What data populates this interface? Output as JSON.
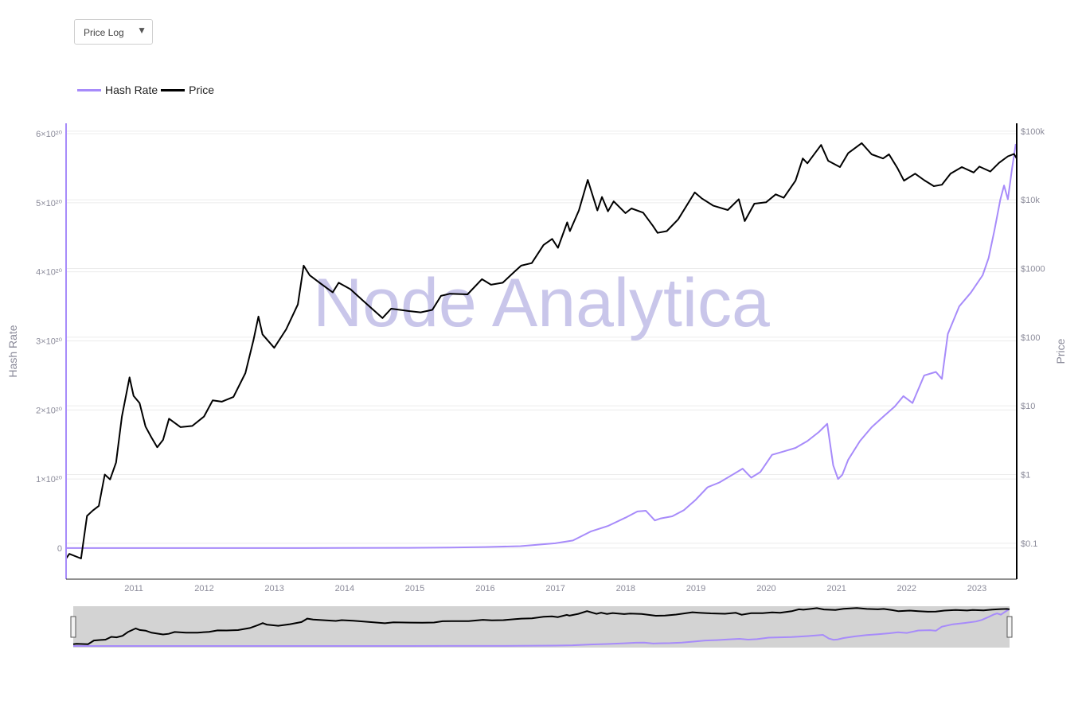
{
  "controls": {
    "scale_select": {
      "value": "Price Log",
      "caret": "▼"
    }
  },
  "watermark": "Node Analytica",
  "colors": {
    "hash_rate": "#a78bfa",
    "price": "#000000",
    "axis_text": "#8a8a99",
    "grid": "#ececec",
    "navigator_bg": "#d3d3d3",
    "watermark": "#c9c6ea"
  },
  "chart_data": {
    "type": "line",
    "x_type": "date",
    "xlim": [
      "2010-07-15",
      "2024-01-25"
    ],
    "x_ticks": [
      "2011",
      "2012",
      "2013",
      "2014",
      "2015",
      "2016",
      "2017",
      "2018",
      "2019",
      "2020",
      "2021",
      "2022",
      "2023"
    ],
    "y_left": {
      "label": "Hash Rate",
      "ylim": [
        -4.5e+19,
        6.15e+20
      ],
      "ticks": [
        {
          "value": 0,
          "label": "0"
        },
        {
          "value": 1e+20,
          "label": "1×10²⁰"
        },
        {
          "value": 2e+20,
          "label": "2×10²⁰"
        },
        {
          "value": 3e+20,
          "label": "3×10²⁰"
        },
        {
          "value": 4e+20,
          "label": "4×10²⁰"
        },
        {
          "value": 5e+20,
          "label": "5×10²⁰"
        },
        {
          "value": 6e+20,
          "label": "6×10²⁰"
        }
      ]
    },
    "y_right": {
      "label": "Price",
      "scale": "log",
      "ylim": [
        0.03,
        130000
      ],
      "ticks": [
        {
          "value": 0.1,
          "label": "$0.1"
        },
        {
          "value": 1,
          "label": "$1"
        },
        {
          "value": 10,
          "label": "$10"
        },
        {
          "value": 100,
          "label": "$100"
        },
        {
          "value": 1000,
          "label": "$1000"
        },
        {
          "value": 10000,
          "label": "$10k"
        },
        {
          "value": 100000,
          "label": "$100k"
        }
      ]
    },
    "legend_position": "top-left",
    "grid": true,
    "series": [
      {
        "name": "Hash Rate",
        "axis": "left",
        "points": [
          [
            "2010-07-15",
            0
          ],
          [
            "2013-01-01",
            20000000000000.0
          ],
          [
            "2014-06-01",
            1e+17
          ],
          [
            "2015-06-01",
            4e+17
          ],
          [
            "2016-01-01",
            8e+17
          ],
          [
            "2016-07-01",
            1.5e+18
          ],
          [
            "2017-01-01",
            2.8e+18
          ],
          [
            "2017-07-01",
            7e+18
          ],
          [
            "2017-10-01",
            1.1e+19
          ],
          [
            "2018-01-01",
            2.4e+19
          ],
          [
            "2018-04-01",
            3.2e+19
          ],
          [
            "2018-07-01",
            4.4e+19
          ],
          [
            "2018-09-01",
            5.3e+19
          ],
          [
            "2018-10-15",
            5.4e+19
          ],
          [
            "2018-12-01",
            4e+19
          ],
          [
            "2019-01-01",
            4.3e+19
          ],
          [
            "2019-03-01",
            4.6e+19
          ],
          [
            "2019-05-01",
            5.5e+19
          ],
          [
            "2019-07-01",
            7e+19
          ],
          [
            "2019-09-01",
            8.8e+19
          ],
          [
            "2019-11-01",
            9.5e+19
          ],
          [
            "2020-01-01",
            1.05e+20
          ],
          [
            "2020-03-01",
            1.15e+20
          ],
          [
            "2020-04-15",
            1.02e+20
          ],
          [
            "2020-06-01",
            1.1e+20
          ],
          [
            "2020-08-01",
            1.35e+20
          ],
          [
            "2020-10-01",
            1.4e+20
          ],
          [
            "2020-12-01",
            1.45e+20
          ],
          [
            "2021-02-01",
            1.55e+20
          ],
          [
            "2021-04-01",
            1.68e+20
          ],
          [
            "2021-05-15",
            1.8e+20
          ],
          [
            "2021-06-15",
            1.2e+20
          ],
          [
            "2021-07-10",
            1e+20
          ],
          [
            "2021-08-01",
            1.06e+20
          ],
          [
            "2021-09-01",
            1.28e+20
          ],
          [
            "2021-11-01",
            1.55e+20
          ],
          [
            "2022-01-01",
            1.75e+20
          ],
          [
            "2022-03-01",
            1.9e+20
          ],
          [
            "2022-05-01",
            2.05e+20
          ],
          [
            "2022-06-15",
            2.2e+20
          ],
          [
            "2022-08-01",
            2.1e+20
          ],
          [
            "2022-10-01",
            2.5e+20
          ],
          [
            "2022-12-01",
            2.55e+20
          ],
          [
            "2023-01-01",
            2.45e+20
          ],
          [
            "2023-02-01",
            3.1e+20
          ],
          [
            "2023-04-01",
            3.5e+20
          ],
          [
            "2023-06-01",
            3.7e+20
          ],
          [
            "2023-08-01",
            3.95e+20
          ],
          [
            "2023-09-01",
            4.2e+20
          ],
          [
            "2023-10-01",
            4.6e+20
          ],
          [
            "2023-11-01",
            5.05e+20
          ],
          [
            "2023-11-20",
            5.25e+20
          ],
          [
            "2023-12-10",
            5.05e+20
          ],
          [
            "2024-01-01",
            5.5e+20
          ],
          [
            "2024-01-20",
            5.85e+20
          ]
        ]
      },
      {
        "name": "Price",
        "axis": "right",
        "points": [
          [
            "2010-07-15",
            0.06
          ],
          [
            "2010-08-01",
            0.07
          ],
          [
            "2010-10-01",
            0.06
          ],
          [
            "2010-11-01",
            0.25
          ],
          [
            "2010-12-01",
            0.3
          ],
          [
            "2011-01-01",
            0.35
          ],
          [
            "2011-02-01",
            1.0
          ],
          [
            "2011-03-01",
            0.85
          ],
          [
            "2011-04-01",
            1.5
          ],
          [
            "2011-05-01",
            7.0
          ],
          [
            "2011-06-10",
            26.0
          ],
          [
            "2011-07-01",
            14.0
          ],
          [
            "2011-08-01",
            11.0
          ],
          [
            "2011-09-01",
            5.0
          ],
          [
            "2011-10-01",
            3.5
          ],
          [
            "2011-11-01",
            2.5
          ],
          [
            "2011-12-01",
            3.2
          ],
          [
            "2012-01-01",
            6.5
          ],
          [
            "2012-03-01",
            4.9
          ],
          [
            "2012-05-01",
            5.1
          ],
          [
            "2012-07-01",
            7.0
          ],
          [
            "2012-08-15",
            12.0
          ],
          [
            "2012-10-01",
            11.5
          ],
          [
            "2012-12-01",
            13.5
          ],
          [
            "2013-02-01",
            30.0
          ],
          [
            "2013-03-15",
            90.0
          ],
          [
            "2013-04-10",
            200.0
          ],
          [
            "2013-05-01",
            110.0
          ],
          [
            "2013-07-01",
            70.0
          ],
          [
            "2013-09-01",
            130.0
          ],
          [
            "2013-11-01",
            300.0
          ],
          [
            "2013-12-01",
            1100.0
          ],
          [
            "2014-01-01",
            800.0
          ],
          [
            "2014-03-01",
            600.0
          ],
          [
            "2014-05-01",
            450.0
          ],
          [
            "2014-06-01",
            620.0
          ],
          [
            "2014-08-01",
            500.0
          ],
          [
            "2014-10-01",
            350.0
          ],
          [
            "2015-01-15",
            190.0
          ],
          [
            "2015-03-01",
            260.0
          ],
          [
            "2015-06-01",
            240.0
          ],
          [
            "2015-08-01",
            230.0
          ],
          [
            "2015-10-01",
            250.0
          ],
          [
            "2015-11-15",
            400.0
          ],
          [
            "2016-01-01",
            430.0
          ],
          [
            "2016-04-01",
            420.0
          ],
          [
            "2016-06-15",
            700.0
          ],
          [
            "2016-08-01",
            580.0
          ],
          [
            "2016-10-01",
            620.0
          ],
          [
            "2016-12-01",
            900.0
          ],
          [
            "2017-01-05",
            1100.0
          ],
          [
            "2017-03-01",
            1200.0
          ],
          [
            "2017-05-01",
            2200.0
          ],
          [
            "2017-06-15",
            2700.0
          ],
          [
            "2017-07-15",
            2000.0
          ],
          [
            "2017-09-01",
            4700.0
          ],
          [
            "2017-09-15",
            3500.0
          ],
          [
            "2017-11-01",
            7000.0
          ],
          [
            "2017-12-17",
            19500.0
          ],
          [
            "2018-02-05",
            7000.0
          ],
          [
            "2018-03-01",
            11000.0
          ],
          [
            "2018-04-01",
            6800.0
          ],
          [
            "2018-05-01",
            9500.0
          ],
          [
            "2018-07-01",
            6400.0
          ],
          [
            "2018-08-01",
            7500.0
          ],
          [
            "2018-10-01",
            6500.0
          ],
          [
            "2018-11-20",
            4200.0
          ],
          [
            "2018-12-15",
            3300.0
          ],
          [
            "2019-02-01",
            3500.0
          ],
          [
            "2019-04-01",
            5200.0
          ],
          [
            "2019-06-26",
            12800.0
          ],
          [
            "2019-08-01",
            10500.0
          ],
          [
            "2019-10-01",
            8200.0
          ],
          [
            "2019-12-15",
            7100.0
          ],
          [
            "2020-02-10",
            10200.0
          ],
          [
            "2020-03-12",
            4900.0
          ],
          [
            "2020-05-01",
            8800.0
          ],
          [
            "2020-07-01",
            9200.0
          ],
          [
            "2020-08-20",
            12000.0
          ],
          [
            "2020-10-01",
            10700.0
          ],
          [
            "2020-12-01",
            19000.0
          ],
          [
            "2021-01-08",
            40000.0
          ],
          [
            "2021-02-01",
            34000.0
          ],
          [
            "2021-04-13",
            63000.0
          ],
          [
            "2021-05-20",
            37000.0
          ],
          [
            "2021-07-20",
            30000.0
          ],
          [
            "2021-09-01",
            48000.0
          ],
          [
            "2021-11-10",
            67000.0
          ],
          [
            "2022-01-01",
            46000.0
          ],
          [
            "2022-03-01",
            40000.0
          ],
          [
            "2022-04-01",
            46000.0
          ],
          [
            "2022-05-15",
            29000.0
          ],
          [
            "2022-06-18",
            19000.0
          ],
          [
            "2022-08-15",
            24000.0
          ],
          [
            "2022-10-01",
            19300.0
          ],
          [
            "2022-11-20",
            15800.0
          ],
          [
            "2023-01-01",
            16600.0
          ],
          [
            "2023-02-15",
            24000.0
          ],
          [
            "2023-04-15",
            30000.0
          ],
          [
            "2023-06-15",
            25000.0
          ],
          [
            "2023-07-15",
            30500.0
          ],
          [
            "2023-09-10",
            25800.0
          ],
          [
            "2023-10-25",
            34500.0
          ],
          [
            "2023-12-10",
            43000.0
          ],
          [
            "2024-01-11",
            46500.0
          ],
          [
            "2024-01-25",
            40000.0
          ]
        ]
      }
    ]
  }
}
